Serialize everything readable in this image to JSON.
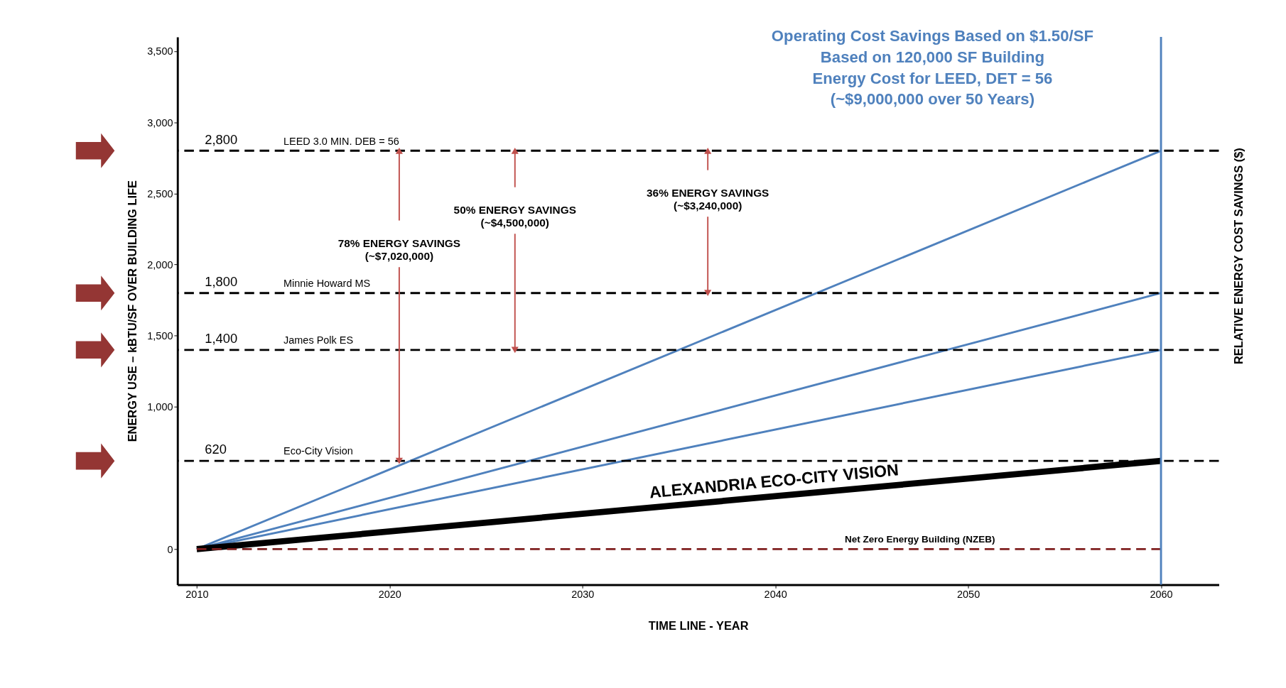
{
  "chart_data": {
    "type": "line",
    "title": "Operating Cost Savings Based on $1.50/SF\nBased on 120,000 SF Building\nEnergy Cost for LEED, DET = 56\n(~$9,000,000 over 50 Years)",
    "xlabel": "TIME LINE  -  YEAR",
    "ylabel": "ENERGY USE – kBTU/SF OVER BUILDING LIFE",
    "y2label": "RELATIVE ENERGY COST SAVINGS ($)",
    "x": [
      2010,
      2060
    ],
    "series": [
      {
        "color": "#4f81bd",
        "values": [
          0,
          2800
        ]
      },
      {
        "color": "#4f81bd",
        "values": [
          0,
          1800
        ]
      },
      {
        "color": "#4f81bd",
        "values": [
          0,
          1400
        ]
      },
      {
        "name": "ALEXANDRIA ECO-CITY VISION",
        "color": "#000000",
        "values": [
          0,
          620
        ]
      },
      {
        "name": "Net Zero Energy Building (NZEB)",
        "color": "#7f1f1f",
        "values": [
          0,
          0
        ],
        "line_style": "dashed"
      }
    ],
    "ref_lines": [
      {
        "axis": "y",
        "value": 2800,
        "label": "2,800",
        "color": "#000000",
        "line_style": "dashed"
      },
      {
        "axis": "y",
        "value": 1800,
        "label": "1,800",
        "color": "#000000",
        "line_style": "dashed"
      },
      {
        "axis": "y",
        "value": 1400,
        "label": "1,400",
        "color": "#000000",
        "line_style": "dashed"
      },
      {
        "axis": "y",
        "value": 620,
        "label": "620",
        "color": "#000000",
        "line_style": "dashed"
      },
      {
        "axis": "x",
        "value": 2060,
        "color": "#4f81bd",
        "line_style": "solid"
      }
    ],
    "annotations": [
      {
        "text": "78% ENERGY SAVINGS\n(~$7,020,000)",
        "x": 2020.5,
        "y": 620
      },
      {
        "text": "50% ENERGY SAVINGS\n(~$4,500,000)",
        "x": 2026.5,
        "y": 1400
      },
      {
        "text": "36% ENERGY SAVINGS\n(~$3,240,000)",
        "x": 2036.5,
        "y": 1800
      },
      {
        "text": "LEED 3.0 MIN. DEB = 56",
        "x": 2014.5,
        "y": 2800
      },
      {
        "text": "Minnie Howard MS",
        "x": 2014.5,
        "y": 1800
      },
      {
        "text": "James Polk ES",
        "x": 2014.5,
        "y": 1400
      },
      {
        "text": "Eco-City Vision",
        "x": 2014.5,
        "y": 620
      }
    ],
    "xlim": [
      2009,
      2063
    ],
    "ylim": [
      -250,
      3600
    ],
    "xticks": [
      2010,
      2020,
      2030,
      2040,
      2050,
      2060
    ],
    "yticks": [
      0,
      {
        "value": 1000,
        "label": "1,000"
      },
      {
        "value": 1500,
        "label": "1,500"
      },
      {
        "value": 2000,
        "label": "2,000"
      },
      {
        "value": 2500,
        "label": "2,500"
      },
      {
        "value": 3000,
        "label": "3,000"
      },
      {
        "value": 3500,
        "label": "3,500"
      }
    ],
    "grid": false,
    "marker": "none",
    "line_style": "solid"
  }
}
